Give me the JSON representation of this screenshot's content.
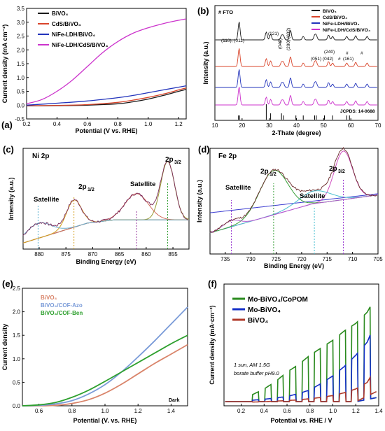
{
  "chart_data": [
    {
      "panel": "(a)",
      "type": "line",
      "xlabel": "Potential (V vs. RHE)",
      "ylabel": "Current density (mA cm⁻²)",
      "xlim": [
        0.2,
        1.25
      ],
      "ylim": [
        -0.5,
        3.5
      ],
      "xticks": [
        "0.2",
        "0.4",
        "0.6",
        "0.8",
        "1.0",
        "1.2"
      ],
      "yticks": [
        "-0.5",
        "0.0",
        "0.5",
        "1.0",
        "1.5",
        "2.0",
        "2.5",
        "3.0",
        "3.5"
      ],
      "legend_position": "top-left",
      "series": [
        {
          "name": "BiVO₄",
          "color": "#1a1a1a",
          "x": [
            0.2,
            0.4,
            0.6,
            0.8,
            0.9,
            1.0,
            1.1,
            1.2,
            1.25
          ],
          "y": [
            -0.03,
            -0.02,
            0.0,
            0.05,
            0.12,
            0.22,
            0.35,
            0.5,
            0.57
          ]
        },
        {
          "name": "CdS/BiVO₄",
          "color": "#d9442a",
          "x": [
            0.2,
            0.4,
            0.6,
            0.8,
            0.9,
            1.0,
            1.1,
            1.2,
            1.25
          ],
          "y": [
            -0.02,
            -0.01,
            0.02,
            0.1,
            0.18,
            0.28,
            0.4,
            0.55,
            0.62
          ]
        },
        {
          "name": "NiFe-LDH/BiVO₄",
          "color": "#2233bb",
          "x": [
            0.2,
            0.4,
            0.6,
            0.8,
            0.9,
            1.0,
            1.1,
            1.2,
            1.25
          ],
          "y": [
            0.0,
            0.07,
            0.15,
            0.27,
            0.35,
            0.45,
            0.55,
            0.65,
            0.7
          ]
        },
        {
          "name": "NiFe-LDH/CdS/BiVO₄",
          "color": "#cc33cc",
          "x": [
            0.2,
            0.3,
            0.4,
            0.5,
            0.6,
            0.7,
            0.8,
            0.9,
            1.0,
            1.1,
            1.2,
            1.25
          ],
          "y": [
            0.05,
            0.2,
            0.5,
            0.9,
            1.4,
            1.9,
            2.3,
            2.6,
            2.8,
            2.95,
            3.07,
            3.12
          ]
        }
      ]
    },
    {
      "panel": "(b)",
      "type": "line",
      "xlabel": "2-Thate (degree)",
      "ylabel": "Intensity (a.u.)",
      "xlim": [
        10,
        70
      ],
      "xticks": [
        "10",
        "20",
        "30",
        "40",
        "50",
        "60",
        "70"
      ],
      "legend_position": "top-right",
      "annotations": [
        "# FTO",
        "(110), (011)",
        "(121)",
        "(040)",
        "(200) (002)",
        "(051) (042)",
        "(240)",
        "(161)",
        "#",
        "#",
        "#",
        "#",
        "JCPDS: 14-0688"
      ],
      "series": [
        {
          "name": "BiVO₄",
          "color": "#1a1a1a"
        },
        {
          "name": "CdS/BiVO₄",
          "color": "#d9442a"
        },
        {
          "name": "NiFe-LDH/BiVO₄",
          "color": "#2233bb"
        },
        {
          "name": "NiFe-LDH/CdS/BiVO₄",
          "color": "#cc33cc"
        }
      ],
      "peaks_2theta": [
        18.9,
        28.9,
        30.5,
        34.5,
        35.2,
        37.8,
        42.5,
        46.7,
        47.3,
        51.8,
        53.3,
        58.5,
        61.8,
        66.0
      ],
      "reference_lines_2theta": [
        18.7,
        19.0,
        28.9,
        30.5,
        34.5,
        35.2,
        39.8,
        42.5,
        46.7,
        47.3,
        50.3,
        53.3,
        58.5,
        59.5
      ]
    },
    {
      "panel": "(c)",
      "title": "Ni 2p",
      "type": "line",
      "xlabel": "Binding Energy (eV)",
      "ylabel": "Intensity (a.u.)",
      "xlim": [
        883,
        852
      ],
      "xticks": [
        "880",
        "875",
        "870",
        "865",
        "860",
        "855"
      ],
      "annotations": [
        "Satellite",
        "2p1/2",
        "Satellite",
        "2p3/2"
      ],
      "peaks_eV": [
        880.2,
        873.5,
        861.8,
        856.0
      ]
    },
    {
      "panel": "(d)",
      "title": "Fe 2p",
      "type": "line",
      "xlabel": "Binding Energy (eV)",
      "ylabel": "Intensity (a.u.)",
      "xlim": [
        738,
        705
      ],
      "xticks": [
        "735",
        "730",
        "725",
        "720",
        "715",
        "710",
        "705"
      ],
      "annotations": [
        "Satellite",
        "2p1/2",
        "Satellite",
        "2p3/2"
      ],
      "peaks_eV": [
        733.8,
        725.5,
        717.5,
        711.8
      ]
    },
    {
      "panel": "(e)",
      "type": "line",
      "xlabel": "Potential (V. vs. RHE)",
      "ylabel": "Current density",
      "xlim": [
        0.5,
        1.5
      ],
      "ylim": [
        0,
        2.5
      ],
      "xticks": [
        "0.6",
        "0.8",
        "1.0",
        "1.2",
        "1.4"
      ],
      "yticks": [
        "0.0",
        "0.5",
        "1.0",
        "1.5",
        "2.0",
        "2.5"
      ],
      "legend_position": "top-left",
      "annotations": [
        "Dark"
      ],
      "series": [
        {
          "name": "BiVO₄",
          "color": "#d9846a",
          "x": [
            0.5,
            0.6,
            0.7,
            0.8,
            0.9,
            1.0,
            1.1,
            1.2,
            1.3,
            1.4,
            1.5
          ],
          "y": [
            0.0,
            0.0,
            0.01,
            0.05,
            0.13,
            0.27,
            0.46,
            0.68,
            0.9,
            1.1,
            1.3
          ]
        },
        {
          "name": "BiVO₄/COF-Azo",
          "color": "#7a9bd8",
          "x": [
            0.5,
            0.6,
            0.7,
            0.8,
            0.9,
            1.0,
            1.1,
            1.2,
            1.3,
            1.4,
            1.5
          ],
          "y": [
            0.0,
            0.01,
            0.04,
            0.11,
            0.25,
            0.45,
            0.72,
            1.04,
            1.38,
            1.74,
            2.1
          ]
        },
        {
          "name": "BiVO₄/COF-Ben",
          "color": "#2ea02e",
          "x": [
            0.5,
            0.6,
            0.7,
            0.8,
            0.9,
            1.0,
            1.1,
            1.2,
            1.3,
            1.4,
            1.5
          ],
          "y": [
            0.0,
            0.02,
            0.07,
            0.18,
            0.33,
            0.52,
            0.72,
            0.92,
            1.12,
            1.32,
            1.5
          ]
        }
      ]
    },
    {
      "panel": "(f)",
      "type": "line",
      "xlabel": "Potential vs. RHE / V",
      "ylabel": "Current density (mA·cm⁻²)",
      "xlim": [
        0.05,
        1.4
      ],
      "ylim": [
        -0.3,
        6.2
      ],
      "xticks": [
        "0.2",
        "0.4",
        "0.6",
        "0.8",
        "1.0",
        "1.2",
        "1.4"
      ],
      "legend_position": "top-left",
      "annotations": [
        "1 sun, AM 1.5G",
        "borate buffer pH9.0"
      ],
      "series": [
        {
          "name": "Mo-BiVO₄/CoPOM",
          "color": "#2a8a1e",
          "x": [
            0.3,
            0.4,
            0.5,
            0.6,
            0.7,
            0.8,
            0.9,
            1.0,
            1.1,
            1.2,
            1.3,
            1.38
          ],
          "y": [
            0.3,
            0.6,
            1.0,
            1.5,
            1.9,
            2.4,
            2.8,
            3.2,
            3.7,
            4.1,
            4.7,
            5.6
          ]
        },
        {
          "name": "Mo-BiVO₄",
          "color": "#1530c8",
          "x": [
            0.3,
            0.4,
            0.5,
            0.6,
            0.7,
            0.8,
            0.9,
            1.0,
            1.1,
            1.2,
            1.3,
            1.38
          ],
          "y": [
            0.0,
            0.05,
            0.12,
            0.2,
            0.35,
            0.55,
            0.9,
            1.3,
            1.8,
            2.4,
            3.1,
            4.3
          ]
        },
        {
          "name": "BiVO₄",
          "color": "#b03a2a",
          "x": [
            0.3,
            0.4,
            0.5,
            0.6,
            0.7,
            0.8,
            0.9,
            1.0,
            1.1,
            1.2,
            1.3,
            1.38
          ],
          "y": [
            -0.1,
            -0.08,
            -0.05,
            -0.02,
            0.02,
            0.08,
            0.15,
            0.25,
            0.4,
            0.6,
            0.95,
            1.8
          ]
        }
      ]
    }
  ]
}
